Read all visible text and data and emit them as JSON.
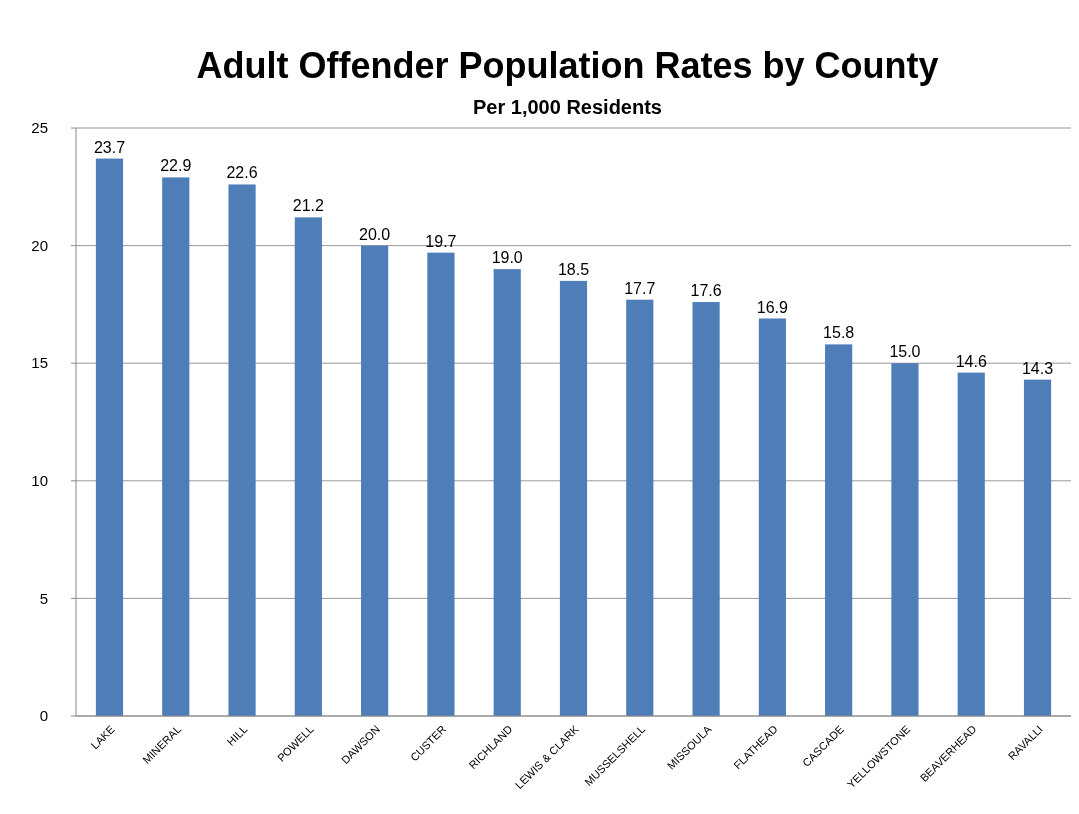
{
  "chart_data": {
    "type": "bar",
    "title": "Adult Offender Population Rates by County",
    "subtitle": "Per 1,000 Residents",
    "categories": [
      "LAKE",
      "MINERAL",
      "HILL",
      "POWELL",
      "DAWSON",
      "CUSTER",
      "RICHLAND",
      "LEWIS & CLARK",
      "MUSSELSHELL",
      "MISSOULA",
      "FLATHEAD",
      "CASCADE",
      "YELLOWSTONE",
      "BEAVERHEAD",
      "RAVALLI"
    ],
    "values": [
      23.7,
      22.9,
      22.6,
      21.2,
      20.0,
      19.7,
      19.0,
      18.5,
      17.7,
      17.6,
      16.9,
      15.8,
      15.0,
      14.6,
      14.3
    ],
    "value_labels": [
      "23.7",
      "22.9",
      "22.6",
      "21.2",
      "20.0",
      "19.7",
      "19.0",
      "18.5",
      "17.7",
      "17.6",
      "16.9",
      "15.8",
      "15.0",
      "14.6",
      "14.3"
    ],
    "color": "#4f7db8",
    "ylim": [
      0,
      25
    ],
    "yticks": [
      0,
      5,
      10,
      15,
      20,
      25
    ],
    "grid": "y"
  }
}
